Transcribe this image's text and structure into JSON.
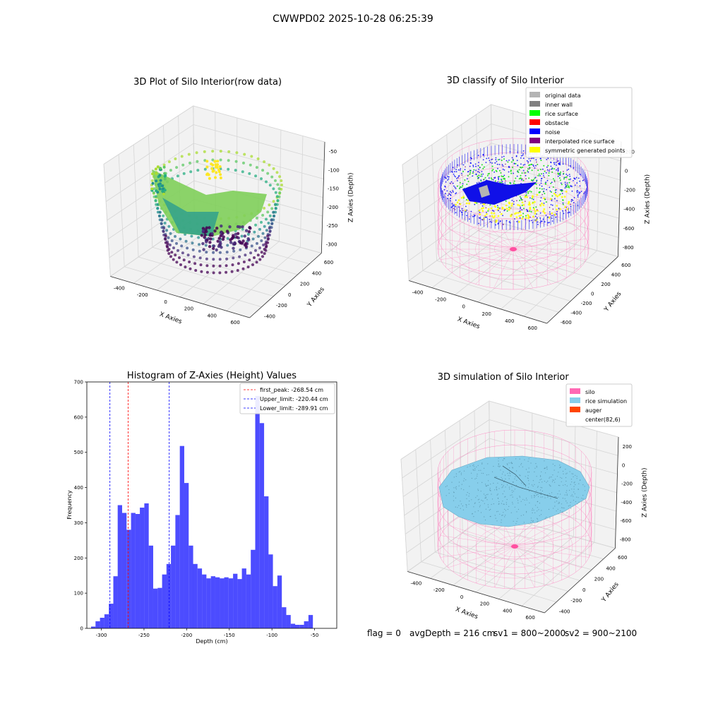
{
  "suptitle": "CWWPD02 2025-10-28 06:25:39",
  "footer": {
    "flag": "flag = 0",
    "avg": "avgDepth = 216 cm",
    "sv1": "sv1 = 800~2000",
    "sv2": "sv2 = 900~2100"
  },
  "chart_data": [
    {
      "type": "scatter",
      "projection": "3d",
      "title": "3D Plot of Silo Interior(row data)",
      "xlabel": "X Axies",
      "ylabel": "Y Axies",
      "zlabel": "Z Axies (Depth)",
      "xticks": [
        "-400",
        "-200",
        "0",
        "200",
        "400",
        "600"
      ],
      "yticks": [
        "-400",
        "-200",
        "0",
        "200",
        "400",
        "600"
      ],
      "zticks": [
        "-300",
        "-250",
        "-200",
        "-150",
        "-100",
        "-50"
      ],
      "zlim": [
        -330,
        -30
      ],
      "colormap": "viridis",
      "grid": true
    },
    {
      "type": "scatter",
      "projection": "3d",
      "title": "3D classify of Silo Interior",
      "xlabel": "X Axies",
      "ylabel": "Y Axies",
      "zlabel": "Z Axies (Depth)",
      "xticks": [
        "-400",
        "-200",
        "0",
        "200",
        "400",
        "600"
      ],
      "yticks": [
        "-600",
        "-400",
        "-200",
        "0",
        "200",
        "400",
        "600"
      ],
      "zticks": [
        "-800",
        "-600",
        "-400",
        "-200",
        "0",
        "200"
      ],
      "legend_position": "top-right",
      "legend": [
        {
          "label": "original data",
          "color": "#b4b4b4"
        },
        {
          "label": "inner wall",
          "color": "#808080"
        },
        {
          "label": "rice surface",
          "color": "#00ff00"
        },
        {
          "label": "obstacle",
          "color": "#ff0000"
        },
        {
          "label": "noise",
          "color": "#0000ff"
        },
        {
          "label": "interpolated rice surface",
          "color": "#800080"
        },
        {
          "label": "symmetric generated points",
          "color": "#ffff00"
        }
      ],
      "grid": true
    },
    {
      "type": "bar",
      "subtype": "histogram",
      "title": "Histogram of Z-Axies (Height) Values",
      "xlabel": "Depth (cm)",
      "ylabel": "Frequency",
      "xlim": [
        -317,
        -24
      ],
      "ylim": [
        0,
        700
      ],
      "xticks": [
        -300,
        -250,
        -200,
        -150,
        -100,
        -50
      ],
      "yticks": [
        0,
        100,
        200,
        300,
        400,
        500,
        600,
        700
      ],
      "bin_start": -312,
      "bin_width": 5.2,
      "values": [
        5,
        20,
        30,
        40,
        70,
        148,
        350,
        328,
        280,
        328,
        325,
        343,
        355,
        235,
        113,
        115,
        153,
        183,
        235,
        322,
        518,
        413,
        235,
        183,
        170,
        153,
        142,
        148,
        145,
        142,
        145,
        142,
        155,
        140,
        170,
        153,
        223,
        660,
        583,
        375,
        210,
        120,
        150,
        60,
        38,
        13,
        10,
        10,
        20,
        38
      ],
      "bar_color": "#0000ff",
      "bar_alpha": 0.7,
      "vlines": [
        {
          "label": "first_peak: -268.54 cm",
          "x": -268.54,
          "color": "#ff0000"
        },
        {
          "label": "Upper_limit: -220.44 cm",
          "x": -220.44,
          "color": "#0000ff"
        },
        {
          "label": "Lower_limit: -289.91 cm",
          "x": -289.91,
          "color": "#0000ff"
        }
      ],
      "legend_position": "top-right",
      "grid": false
    },
    {
      "type": "surface",
      "projection": "3d",
      "title": "3D simulation of Silo Interior",
      "xlabel": "X Axies",
      "ylabel": "Y Axies",
      "zlabel": "Z Axies (Depth)",
      "xticks": [
        "-400",
        "-200",
        "0",
        "200",
        "400",
        "600"
      ],
      "yticks": [
        "-400",
        "-200",
        "0",
        "200",
        "400",
        "600"
      ],
      "zticks": [
        "-800",
        "-600",
        "-400",
        "-200",
        "0",
        "200"
      ],
      "legend_position": "top-right",
      "legend": [
        {
          "label": "silo",
          "color": "#ff69b4"
        },
        {
          "label": "rice simulation",
          "color": "#87ceeb"
        },
        {
          "label": "auger",
          "color": "#ff4500"
        },
        {
          "label": "center(82,6)",
          "color": ""
        }
      ],
      "grid": true
    }
  ]
}
